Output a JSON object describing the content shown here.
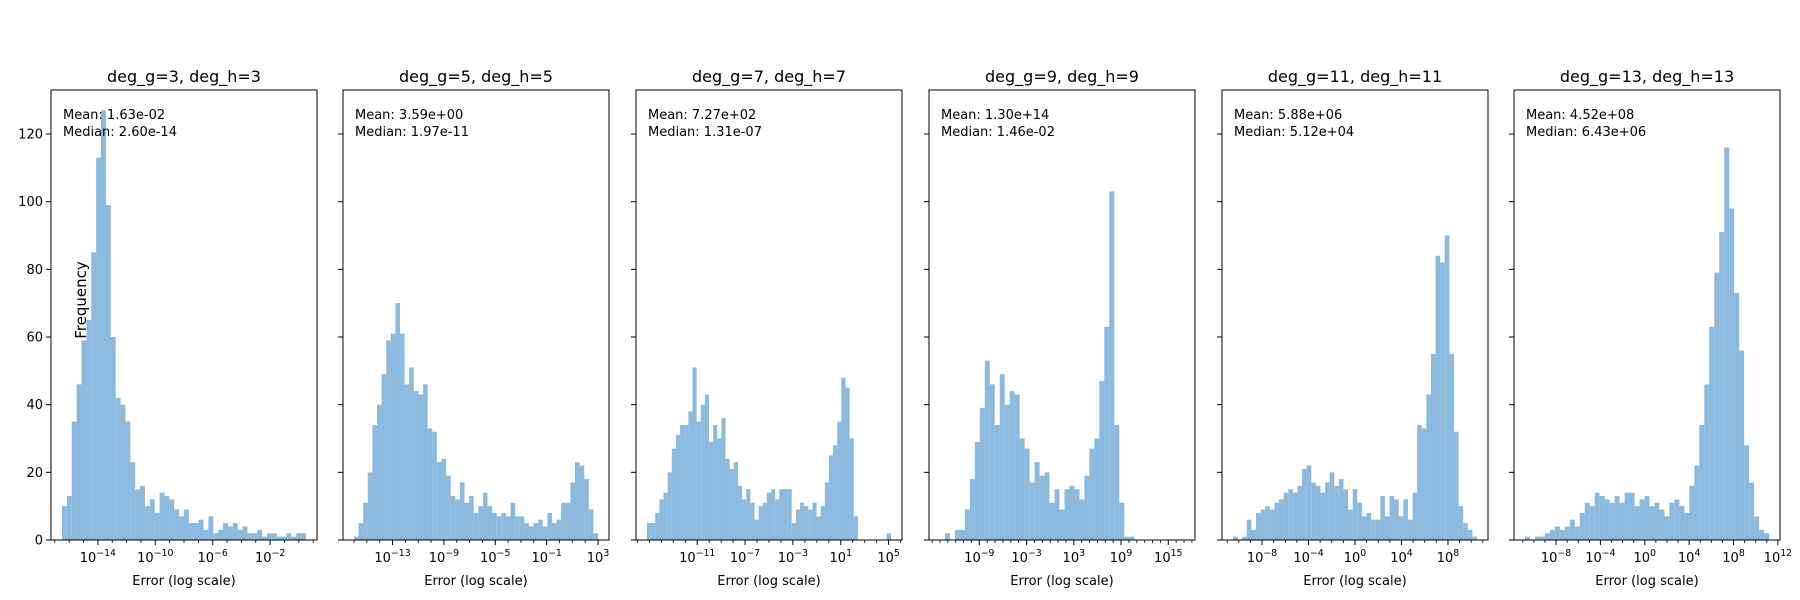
{
  "figure": {
    "ylabel": "Frequency",
    "bar_color": "#5b9bd0",
    "bar_opacity": 0.7
  },
  "chart_data": [
    {
      "type": "bar",
      "title": "deg_g=3, deg_h=3",
      "xlabel": "Error (log scale)",
      "ylabel": "Frequency",
      "xscale": "log",
      "ylim": [
        0,
        133
      ],
      "annotation": [
        "Mean: 1.63e-02",
        "Median: 2.60e-14"
      ],
      "x_ticks": [
        {
          "exp": -14,
          "label": "10^-14"
        },
        {
          "exp": -10,
          "label": "10^-10"
        },
        {
          "exp": -6,
          "label": "10^-6"
        },
        {
          "exp": -2,
          "label": "10^-2"
        }
      ],
      "y_ticks": [
        0,
        20,
        40,
        60,
        80,
        100,
        120
      ],
      "bin_edges_log10": [
        -16.5,
        0.5
      ],
      "values": [
        10,
        13,
        35,
        46,
        59,
        65,
        85,
        113,
        127,
        99,
        60,
        42,
        40,
        35,
        23,
        15,
        16,
        10,
        12,
        8,
        14,
        13,
        12,
        9,
        7,
        9,
        5,
        5,
        6,
        3,
        7,
        2,
        3,
        5,
        4,
        5,
        3,
        4,
        2,
        2,
        3,
        1,
        2,
        2,
        1,
        1,
        2,
        1,
        2,
        2
      ]
    },
    {
      "type": "bar",
      "title": "deg_g=5, deg_h=5",
      "xlabel": "Error (log scale)",
      "xscale": "log",
      "ylim": [
        0,
        133
      ],
      "annotation": [
        "Mean: 3.59e+00",
        "Median: 1.97e-11"
      ],
      "x_ticks": [
        {
          "exp": -13,
          "label": "10^-13"
        },
        {
          "exp": -9,
          "label": "10^-9"
        },
        {
          "exp": -5,
          "label": "10^-5"
        },
        {
          "exp": -1,
          "label": "10^-1"
        },
        {
          "exp": 3,
          "label": "10^3"
        }
      ],
      "y_ticks": [
        0,
        20,
        40,
        60,
        80,
        100,
        120
      ],
      "bin_edges_log10": [
        -16,
        3
      ],
      "values": [
        1,
        5,
        11,
        20,
        34,
        40,
        49,
        59,
        61,
        70,
        61,
        46,
        51,
        44,
        43,
        46,
        33,
        32,
        23,
        24,
        19,
        13,
        12,
        17,
        11,
        13,
        8,
        10,
        14,
        10,
        8,
        7,
        8,
        7,
        11,
        7,
        7,
        5,
        4,
        5,
        6,
        4,
        8,
        5,
        6,
        11,
        11,
        17,
        23,
        22,
        18,
        9,
        2
      ]
    },
    {
      "type": "bar",
      "title": "deg_g=7, deg_h=7",
      "xlabel": "Error (log scale)",
      "xscale": "log",
      "ylim": [
        0,
        133
      ],
      "annotation": [
        "Mean: 7.27e+02",
        "Median: 1.31e-07"
      ],
      "x_ticks": [
        {
          "exp": -11,
          "label": "10^-11"
        },
        {
          "exp": -7,
          "label": "10^-7"
        },
        {
          "exp": -3,
          "label": "10^-3"
        },
        {
          "exp": 1,
          "label": "10^1"
        },
        {
          "exp": 5,
          "label": "10^5"
        }
      ],
      "y_ticks": [
        0,
        20,
        40,
        60,
        80,
        100,
        120
      ],
      "bin_edges_log10": [
        -15.2,
        5.2
      ],
      "values": [
        5,
        5,
        8,
        12,
        14,
        20,
        27,
        31,
        34,
        34,
        38,
        51,
        35,
        40,
        43,
        29,
        34,
        30,
        36,
        24,
        21,
        23,
        16,
        12,
        15,
        11,
        6,
        10,
        11,
        14,
        15,
        12,
        15,
        15,
        15,
        5,
        9,
        11,
        10,
        9,
        11,
        7,
        10,
        17,
        25,
        28,
        35,
        48,
        45,
        30,
        7,
        0,
        0,
        0,
        0,
        0,
        0,
        0,
        2
      ]
    },
    {
      "type": "bar",
      "title": "deg_g=9, deg_h=9",
      "xlabel": "Error (log scale)",
      "xscale": "log",
      "ylim": [
        0,
        133
      ],
      "annotation": [
        "Mean: 1.30e+14",
        "Median: 1.46e-02"
      ],
      "x_ticks": [
        {
          "exp": -9,
          "label": "10^-9"
        },
        {
          "exp": -3,
          "label": "10^-3"
        },
        {
          "exp": 3,
          "label": "10^3"
        },
        {
          "exp": 9,
          "label": "10^9"
        },
        {
          "exp": 15,
          "label": "10^15"
        }
      ],
      "y_ticks": [
        0,
        20,
        40,
        60,
        80,
        100,
        120
      ],
      "bin_edges_log10": [
        -14,
        17
      ],
      "values": [
        0,
        2,
        0,
        3,
        3,
        9,
        18,
        29,
        39,
        53,
        46,
        34,
        49,
        40,
        44,
        43,
        30,
        27,
        17,
        23,
        19,
        20,
        11,
        15,
        9,
        15,
        16,
        15,
        12,
        19,
        27,
        30,
        47,
        63,
        103,
        34,
        11,
        1,
        1,
        0,
        0,
        0,
        0,
        0,
        0,
        0,
        0,
        0,
        0
      ]
    },
    {
      "type": "bar",
      "title": "deg_g=11, deg_h=11",
      "xlabel": "Error (log scale)",
      "xscale": "log",
      "ylim": [
        0,
        133
      ],
      "annotation": [
        "Mean: 5.88e+06",
        "Median: 5.12e+04"
      ],
      "x_ticks": [
        {
          "exp": -8,
          "label": "10^-8"
        },
        {
          "exp": -4,
          "label": "10^-4"
        },
        {
          "exp": 0,
          "label": "10^0"
        },
        {
          "exp": 4,
          "label": "10^4"
        },
        {
          "exp": 8,
          "label": "10^8"
        }
      ],
      "y_ticks": [
        0,
        20,
        40,
        60,
        80,
        100,
        120
      ],
      "bin_edges_log10": [
        -10.5,
        10.5
      ],
      "values": [
        1,
        0,
        1,
        6,
        3,
        8,
        9,
        10,
        9,
        11,
        12,
        14,
        15,
        14,
        16,
        21,
        22,
        17,
        16,
        14,
        17,
        20,
        16,
        18,
        15,
        9,
        15,
        11,
        7,
        8,
        6,
        6,
        13,
        7,
        13,
        12,
        7,
        12,
        6,
        14,
        34,
        33,
        43,
        55,
        84,
        82,
        90,
        55,
        32,
        10,
        5,
        3,
        1
      ]
    },
    {
      "type": "bar",
      "title": "deg_g=13, deg_h=13",
      "xlabel": "Error (log scale)",
      "xscale": "log",
      "ylim": [
        0,
        133
      ],
      "annotation": [
        "Mean: 4.52e+08",
        "Median: 6.43e+06"
      ],
      "x_ticks": [
        {
          "exp": -8,
          "label": "10^-8"
        },
        {
          "exp": -4,
          "label": "10^-4"
        },
        {
          "exp": 0,
          "label": "10^0"
        },
        {
          "exp": 4,
          "label": "10^4"
        },
        {
          "exp": 8,
          "label": "10^8"
        },
        {
          "exp": 12,
          "label": "10^12"
        }
      ],
      "y_ticks": [
        0,
        20,
        40,
        60,
        80,
        100,
        120
      ],
      "bin_edges_log10": [
        -10.8,
        11.2
      ],
      "values": [
        1,
        0,
        1,
        1,
        2,
        3,
        4,
        3,
        4,
        6,
        4,
        8,
        11,
        10,
        14,
        13,
        12,
        11,
        13,
        11,
        14,
        14,
        10,
        12,
        13,
        10,
        11,
        9,
        7,
        11,
        12,
        10,
        8,
        16,
        22,
        34,
        46,
        63,
        79,
        91,
        116,
        98,
        73,
        56,
        28,
        17,
        7,
        3,
        2
      ]
    }
  ]
}
